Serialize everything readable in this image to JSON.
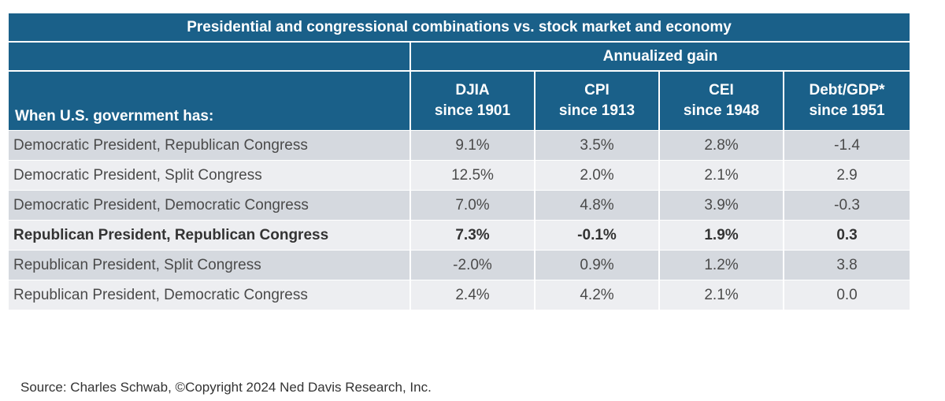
{
  "chart_data": {
    "type": "table",
    "title": "Presidential and congressional combinations vs. stock market and economy",
    "group_header": "Annualized gain",
    "row_header": "When U.S. government has:",
    "columns": [
      {
        "line1": "DJIA",
        "line2": "since 1901"
      },
      {
        "line1": "CPI",
        "line2": "since 1913"
      },
      {
        "line1": "CEI",
        "line2": "since 1948"
      },
      {
        "line1": "Debt/GDP*",
        "line2": "since 1951"
      }
    ],
    "rows": [
      {
        "label": "Democratic President, Republican Congress",
        "values": [
          "9.1%",
          "3.5%",
          "2.8%",
          "-1.4"
        ],
        "bold": false
      },
      {
        "label": "Democratic President, Split Congress",
        "values": [
          "12.5%",
          "2.0%",
          "2.1%",
          "2.9"
        ],
        "bold": false
      },
      {
        "label": "Democratic President, Democratic Congress",
        "values": [
          "7.0%",
          "4.8%",
          "3.9%",
          "-0.3"
        ],
        "bold": false
      },
      {
        "label": "Republican President, Republican Congress",
        "values": [
          "7.3%",
          "-0.1%",
          "1.9%",
          "0.3"
        ],
        "bold": true
      },
      {
        "label": "Republican President, Split Congress",
        "values": [
          "-2.0%",
          "0.9%",
          "1.2%",
          "3.8"
        ],
        "bold": false
      },
      {
        "label": "Republican President, Democratic Congress",
        "values": [
          "2.4%",
          "4.2%",
          "2.1%",
          "0.0"
        ],
        "bold": false
      }
    ]
  },
  "source": "Source: Charles Schwab, ©Copyright 2024 Ned Davis Research, Inc.",
  "colors": {
    "header_bg": "#1a6089",
    "row_odd": "#d5d9df",
    "row_even": "#edeef1"
  }
}
